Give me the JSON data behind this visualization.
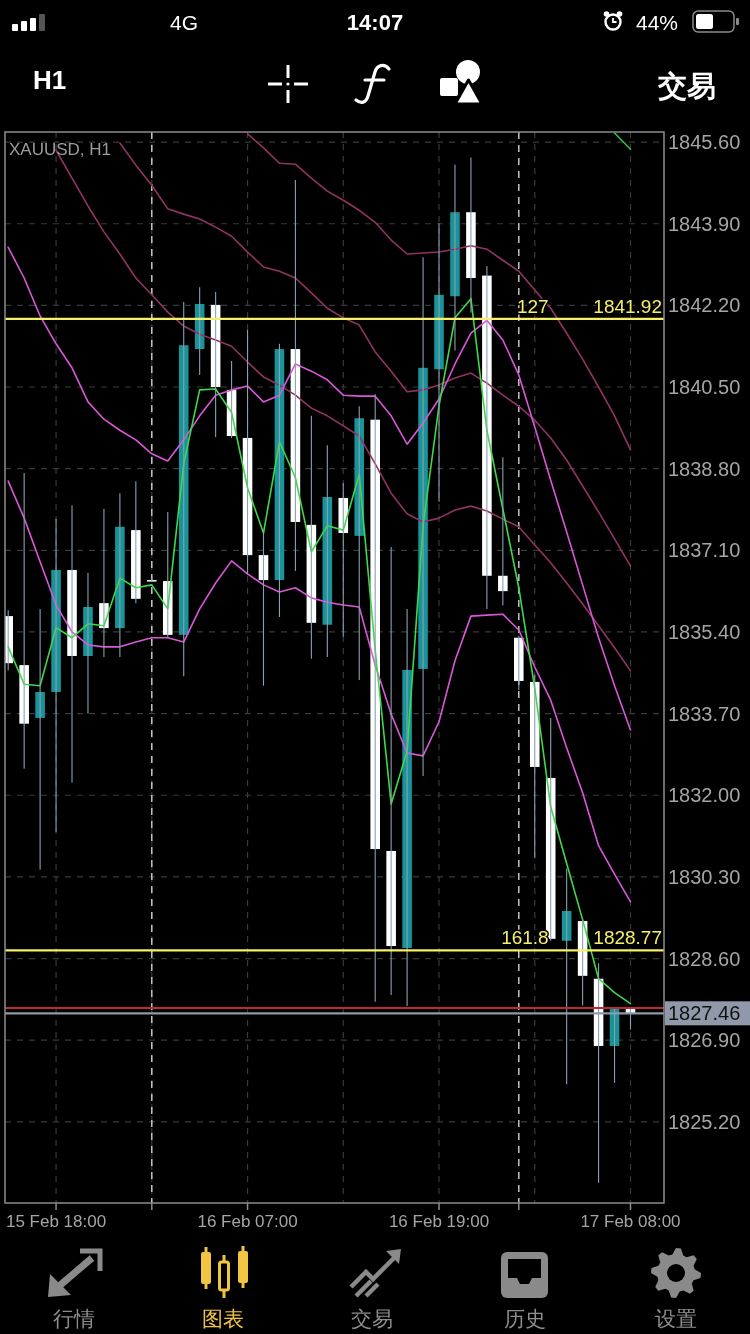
{
  "chart_data": {
    "type": "candlestick",
    "title": "XAUUSD, H1",
    "categories": [
      null,
      null,
      null,
      "15 Feb 18:00",
      null,
      null,
      null,
      null,
      null,
      null,
      null,
      null,
      null,
      null,
      null,
      "16 Feb 07:00",
      null,
      null,
      null,
      null,
      null,
      null,
      null,
      null,
      null,
      null,
      null,
      "16 Feb 19:00",
      null,
      null,
      null,
      null,
      null,
      null,
      null,
      null,
      null,
      null,
      null,
      "17 Feb 08:00"
    ],
    "ylim": [
      1823.51,
      1845.81
    ],
    "yticks": [
      {
        "value": 1845.6,
        "label": "1845.60"
      },
      {
        "value": 1843.9,
        "label": "1843.90"
      },
      {
        "value": 1842.2,
        "label": "1842.20"
      },
      {
        "value": 1840.5,
        "label": "1840.50"
      },
      {
        "value": 1838.8,
        "label": "1838.80"
      },
      {
        "value": 1837.1,
        "label": "1837.10"
      },
      {
        "value": 1835.4,
        "label": "1835.40"
      },
      {
        "value": 1833.7,
        "label": "1833.70"
      },
      {
        "value": 1832,
        "label": "1832.00"
      },
      {
        "value": 1830.3,
        "label": "1830.30"
      },
      {
        "value": 1828.6,
        "label": "1828.60"
      },
      {
        "value": 1826.9,
        "label": "1826.90"
      },
      {
        "value": 1825.2,
        "label": "1825.20"
      }
    ],
    "ohlc": [
      [
        1835.73,
        1835.85,
        1834.6,
        1834.75
      ],
      [
        1834.71,
        1838.71,
        1832.55,
        1833.49
      ],
      [
        1833.61,
        1835.88,
        1830.45,
        1834.15
      ],
      [
        1834.15,
        1837.75,
        1831.24,
        1836.69
      ],
      [
        1836.69,
        1838.04,
        1832.26,
        1834.9
      ],
      [
        1834.9,
        1836.63,
        1833.7,
        1835.92
      ],
      [
        1836.0,
        1837.96,
        1834.88,
        1835.48
      ],
      [
        1835.48,
        1838.29,
        1834.88,
        1837.59
      ],
      [
        1837.52,
        1838.54,
        1836.0,
        1836.09
      ],
      [
        1836.48,
        1836.52,
        1836.44,
        1836.46
      ],
      [
        1836.46,
        1837.9,
        1835.28,
        1835.34
      ],
      [
        1835.34,
        1842.27,
        1834.48,
        1841.37
      ],
      [
        1841.29,
        1842.58,
        1840.75,
        1842.23
      ],
      [
        1842.21,
        1842.48,
        1839.46,
        1840.5
      ],
      [
        1840.44,
        1841.04,
        1839.44,
        1839.48
      ],
      [
        1839.44,
        1841.69,
        1836.59,
        1837.0
      ],
      [
        1837.0,
        1837.52,
        1834.28,
        1836.48
      ],
      [
        1836.48,
        1841.4,
        1835.71,
        1841.29
      ],
      [
        1841.29,
        1844.81,
        1836.67,
        1837.69
      ],
      [
        1837.63,
        1839.9,
        1834.84,
        1835.59
      ],
      [
        1835.55,
        1839.29,
        1834.88,
        1838.21
      ],
      [
        1838.19,
        1838.5,
        1835.3,
        1837.46
      ],
      [
        1837.4,
        1840.1,
        1834.4,
        1839.85
      ],
      [
        1839.82,
        1840.35,
        1827.7,
        1830.88
      ],
      [
        1830.84,
        1837.17,
        1827.84,
        1828.86
      ],
      [
        1828.82,
        1835.88,
        1827.61,
        1834.61
      ],
      [
        1834.63,
        1843.2,
        1832.4,
        1840.9
      ],
      [
        1840.87,
        1843.91,
        1838.11,
        1842.42
      ],
      [
        1842.39,
        1845.13,
        1841.26,
        1844.14
      ],
      [
        1844.14,
        1845.28,
        1842.05,
        1842.77
      ],
      [
        1842.82,
        1843.02,
        1835.88,
        1836.57
      ],
      [
        1836.57,
        1839.04,
        1835.95,
        1836.25
      ],
      [
        1835.28,
        1835.32,
        1834.19,
        1834.38
      ],
      [
        1834.36,
        1834.51,
        1830.7,
        1832.59
      ],
      [
        1832.36,
        1833.61,
        1828.97,
        1829.01
      ],
      [
        1828.97,
        1830.47,
        1825.98,
        1829.59
      ],
      [
        1829.38,
        1829.42,
        1827.62,
        1828.24
      ],
      [
        1828.18,
        1828.5,
        1823.93,
        1826.78
      ],
      [
        1826.78,
        1827.59,
        1826.01,
        1827.55
      ],
      [
        1827.55,
        1827.59,
        1827.12,
        1827.46
      ]
    ],
    "colors": [
      "#ffffff",
      "#ffffff",
      "#1a939b",
      "#1a939b",
      "#ffffff",
      "#1a939b",
      "#ffffff",
      "#1a939b",
      "#ffffff",
      "#ffffff",
      "#ffffff",
      "#1a939b",
      "#1a939b",
      "#ffffff",
      "#ffffff",
      "#ffffff",
      "#ffffff",
      "#1a939b",
      "#ffffff",
      "#ffffff",
      "#1a939b",
      "#ffffff",
      "#1a939b",
      "#ffffff",
      "#ffffff",
      "#1a939b",
      "#1a939b",
      "#1a939b",
      "#1a939b",
      "#ffffff",
      "#ffffff",
      "#ffffff",
      "#ffffff",
      "#ffffff",
      "#ffffff",
      "#1a939b",
      "#ffffff",
      "#ffffff",
      "#1a939b",
      "#ffffff"
    ],
    "series": [
      {
        "type": "line",
        "color": "#923463",
        "values": [
          null,
          null,
          null,
          1845.43,
          1844.85,
          1844.27,
          1843.73,
          1843.27,
          1842.77,
          1842.42,
          1842.06,
          1841.77,
          1841.6,
          1841.48,
          1841.35,
          1841.02,
          1840.71,
          1840.54,
          1840.33,
          1840.06,
          1839.9,
          1839.69,
          1839.48,
          1838.9,
          1838.29,
          1837.86,
          1837.69,
          1837.77,
          1837.94,
          1838.02,
          1837.92,
          1837.75,
          1837.59,
          1837.21,
          1836.84,
          1836.42,
          1835.98,
          1835.53,
          1835.07,
          1834.59
        ]
      },
      {
        "type": "line",
        "color": "#923463",
        "values": [
          null,
          null,
          null,
          null,
          null,
          null,
          null,
          1845.58,
          1845.12,
          1844.7,
          1844.21,
          1844.1,
          1844.0,
          1843.83,
          1843.64,
          1843.31,
          1843.0,
          1842.91,
          1842.77,
          1842.46,
          1842.14,
          1841.94,
          1841.79,
          1841.23,
          1840.83,
          1840.4,
          1840.44,
          1840.54,
          1840.69,
          1840.79,
          1840.58,
          1840.33,
          1840.1,
          1839.81,
          1839.44,
          1838.98,
          1838.44,
          1837.9,
          1837.34,
          1836.77
        ]
      },
      {
        "type": "line",
        "color": "#923463",
        "values": [
          null,
          null,
          null,
          null,
          null,
          null,
          null,
          null,
          null,
          null,
          null,
          null,
          null,
          null,
          null,
          1845.77,
          1845.48,
          1845.16,
          1845.14,
          1844.85,
          1844.58,
          1844.39,
          1844.18,
          1843.93,
          1843.56,
          1843.27,
          1843.29,
          1843.31,
          1843.37,
          1843.44,
          1843.37,
          1843.14,
          1842.91,
          1842.52,
          1842.14,
          1841.62,
          1841.08,
          1840.5,
          1839.9,
          1839.19
        ]
      },
      {
        "type": "line",
        "color": "#d957d9",
        "values": [
          1843.41,
          1842.77,
          1841.98,
          1841.4,
          1840.9,
          1840.19,
          1839.83,
          1839.6,
          1839.4,
          1839.11,
          1838.96,
          1839.4,
          1839.9,
          1840.33,
          1840.44,
          1840.52,
          1840.19,
          1840.33,
          1840.98,
          1840.83,
          1840.65,
          1840.33,
          1840.31,
          1840.31,
          1839.9,
          1839.31,
          1839.75,
          1840.25,
          1840.98,
          1841.62,
          1841.89,
          1841.48,
          1840.75,
          1839.67,
          1838.56,
          1837.48,
          1836.38,
          1835.28,
          1834.28,
          1833.36
        ]
      },
      {
        "type": "line",
        "color": "#d957d9",
        "values": [
          1838.54,
          1837.77,
          1836.86,
          1835.96,
          1835.4,
          1835.13,
          1835.09,
          1835.09,
          1835.19,
          1835.28,
          1835.28,
          1835.19,
          1835.88,
          1836.42,
          1836.88,
          1836.61,
          1836.38,
          1836.23,
          1836.32,
          1836.11,
          1836.02,
          1835.96,
          1835.92,
          1834.71,
          1833.69,
          1832.88,
          1832.82,
          1833.53,
          1834.8,
          1835.73,
          1835.75,
          1835.77,
          1835.44,
          1834.67,
          1833.98,
          1832.99,
          1832.05,
          1830.95,
          1830.36,
          1829.78
        ]
      },
      {
        "type": "line",
        "color": "#3fd84a",
        "values": [
          1835.09,
          1834.31,
          1834.28,
          1835.49,
          1835.28,
          1835.57,
          1835.53,
          1836.52,
          1836.32,
          1836.38,
          1835.88,
          1838.9,
          1840.44,
          1840.46,
          1839.97,
          1838.4,
          1837.46,
          1839.36,
          1838.61,
          1837.07,
          1837.61,
          1837.52,
          1838.68,
          1835.03,
          1831.82,
          1832.92,
          1837.61,
          1840.11,
          1841.94,
          1842.34,
          1839.6,
          1837.96,
          1836.32,
          1834.23,
          1831.76,
          1830.58,
          1829.41,
          1828.18,
          1827.89,
          1827.66
        ]
      },
      {
        "type": "line",
        "color": "#2fbf4a",
        "values": [
          null,
          null,
          null,
          null,
          null,
          null,
          null,
          null,
          null,
          null,
          null,
          null,
          null,
          null,
          null,
          null,
          null,
          null,
          null,
          null,
          null,
          null,
          null,
          null,
          null,
          null,
          null,
          null,
          null,
          null,
          null,
          null,
          null,
          null,
          null,
          null,
          null,
          null,
          1845.79,
          1845.45
        ]
      }
    ],
    "ref_lines": [
      {
        "axis": "y",
        "value": 1841.92,
        "color": "#f5f06a"
      },
      {
        "axis": "y",
        "value": 1828.77,
        "color": "#f5f06a"
      },
      {
        "axis": "y",
        "value": 1827.57,
        "color": "#c0282d"
      },
      {
        "axis": "y",
        "value": 1827.46,
        "label": "1827.46",
        "color": "#8f99aa"
      }
    ],
    "annotations": [
      "4G",
      "14:07",
      "44%",
      "H1",
      "交易",
      "行情",
      "图表",
      "交易",
      "历史",
      "设置",
      {
        "text": "127",
        "y": 1841.92
      },
      {
        "text": "1841.92",
        "y": 1841.92
      },
      {
        "text": "161.8",
        "y": 1828.77
      },
      {
        "text": "1828.77",
        "y": 1828.77
      }
    ],
    "grid": true
  }
}
